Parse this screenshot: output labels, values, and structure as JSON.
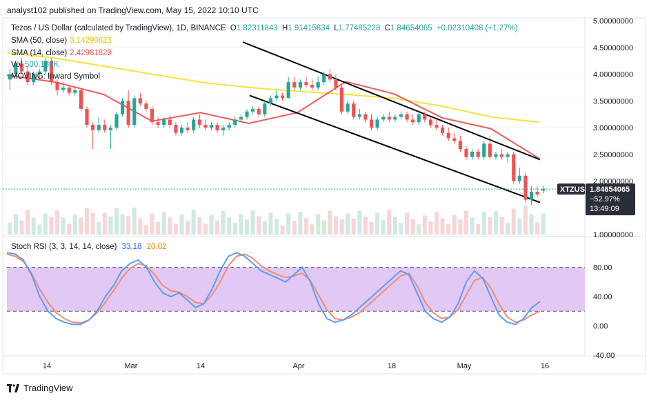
{
  "publisher": "analyst102 published on TradingView.com, May 15, 2022 10:10 UTC",
  "header": {
    "title": "Tezos / US Dollar (calculated by TradingView), 1D, BINANCE",
    "open_label": "O",
    "open": "1.82311843",
    "high_label": "H",
    "high": "1.91415834",
    "low_label": "L",
    "low": "1.77485228",
    "close_label": "C",
    "close": "1.84654065",
    "change": "+0.02310408 (+1.27%)"
  },
  "indicators": {
    "sma50_label": "SMA (50, close)",
    "sma50_value": "3.14290623",
    "sma14_label": "SMA (14, close)",
    "sma14_value": "2.42981829",
    "vol_label": "Vol",
    "vol_value": "500.186K",
    "moving_label": "MOVING: Inward Symbol"
  },
  "price_badge": {
    "symbol": "XTZUSD",
    "price": "1.84654065",
    "change": "−52.97%",
    "countdown": "13:49:09"
  },
  "rsi": {
    "label": "Stoch RSI (3, 3, 14, 14, close)",
    "k_value": "33.18",
    "d_value": "20.02"
  },
  "footer_brand": "TradingView",
  "colors": {
    "up": "#26a69a",
    "down": "#ef5350",
    "sma50": "#f5e33a",
    "sma14": "#ef5a5a",
    "channel": "#000000",
    "rsi_k": "#5b9cf6",
    "rsi_d": "#f28b72",
    "rsi_band": "#e1c8f5",
    "badge": "#2a2e39",
    "up_vol": "#cfe9e3",
    "down_vol": "#f6d6d6"
  },
  "chart_data": [
    {
      "type": "candlestick",
      "title": "Tezos / US Dollar (calculated by TradingView), 1D, BINANCE",
      "x_tick_labels": [
        "14",
        "Mar",
        "14",
        "Apr",
        "18",
        "May",
        "16"
      ],
      "y_tick_labels": [
        "5.00000000",
        "4.50000000",
        "4.00000000",
        "3.50000000",
        "3.00000000",
        "2.50000000",
        "2.00000000",
        "1.00000000"
      ],
      "ylim": [
        1.0,
        5.0
      ],
      "candles": [
        {
          "o": 3.9,
          "h": 4.1,
          "l": 3.7,
          "c": 4.0
        },
        {
          "o": 4.0,
          "h": 4.25,
          "l": 3.95,
          "c": 4.2
        },
        {
          "o": 4.2,
          "h": 4.3,
          "l": 4.0,
          "c": 4.05
        },
        {
          "o": 4.05,
          "h": 4.15,
          "l": 3.8,
          "c": 3.85
        },
        {
          "o": 3.85,
          "h": 4.05,
          "l": 3.8,
          "c": 4.0
        },
        {
          "o": 4.0,
          "h": 4.1,
          "l": 3.9,
          "c": 4.05
        },
        {
          "o": 4.05,
          "h": 4.3,
          "l": 4.0,
          "c": 4.25
        },
        {
          "o": 4.25,
          "h": 4.3,
          "l": 3.8,
          "c": 3.85
        },
        {
          "o": 3.85,
          "h": 3.9,
          "l": 3.6,
          "c": 3.7
        },
        {
          "o": 3.7,
          "h": 3.85,
          "l": 3.65,
          "c": 3.75
        },
        {
          "o": 3.75,
          "h": 3.8,
          "l": 3.6,
          "c": 3.65
        },
        {
          "o": 3.65,
          "h": 3.75,
          "l": 3.6,
          "c": 3.7
        },
        {
          "o": 3.7,
          "h": 3.72,
          "l": 3.3,
          "c": 3.35
        },
        {
          "o": 3.35,
          "h": 3.4,
          "l": 3.0,
          "c": 3.05
        },
        {
          "o": 3.05,
          "h": 3.1,
          "l": 2.6,
          "c": 2.95
        },
        {
          "o": 2.95,
          "h": 3.2,
          "l": 2.9,
          "c": 3.05
        },
        {
          "o": 3.05,
          "h": 3.15,
          "l": 2.9,
          "c": 2.95
        },
        {
          "o": 2.95,
          "h": 3.05,
          "l": 2.6,
          "c": 3.0
        },
        {
          "o": 3.0,
          "h": 3.3,
          "l": 2.95,
          "c": 3.25
        },
        {
          "o": 3.25,
          "h": 3.55,
          "l": 3.2,
          "c": 3.5
        },
        {
          "o": 3.5,
          "h": 3.7,
          "l": 3.0,
          "c": 3.05
        },
        {
          "o": 3.05,
          "h": 3.6,
          "l": 3.0,
          "c": 3.55
        },
        {
          "o": 3.55,
          "h": 3.65,
          "l": 3.4,
          "c": 3.45
        },
        {
          "o": 3.45,
          "h": 3.5,
          "l": 3.3,
          "c": 3.35
        },
        {
          "o": 3.35,
          "h": 3.4,
          "l": 3.05,
          "c": 3.1
        },
        {
          "o": 3.1,
          "h": 3.2,
          "l": 3.0,
          "c": 3.05
        },
        {
          "o": 3.05,
          "h": 3.2,
          "l": 3.0,
          "c": 3.15
        },
        {
          "o": 3.15,
          "h": 3.25,
          "l": 3.0,
          "c": 3.05
        },
        {
          "o": 3.05,
          "h": 3.1,
          "l": 2.85,
          "c": 2.9
        },
        {
          "o": 2.9,
          "h": 3.05,
          "l": 2.85,
          "c": 3.0
        },
        {
          "o": 3.0,
          "h": 3.1,
          "l": 2.9,
          "c": 2.95
        },
        {
          "o": 2.95,
          "h": 3.2,
          "l": 2.9,
          "c": 3.15
        },
        {
          "o": 3.15,
          "h": 3.25,
          "l": 3.0,
          "c": 3.05
        },
        {
          "o": 3.05,
          "h": 3.15,
          "l": 2.95,
          "c": 3.0
        },
        {
          "o": 3.0,
          "h": 3.1,
          "l": 2.95,
          "c": 3.05
        },
        {
          "o": 3.05,
          "h": 3.1,
          "l": 2.9,
          "c": 2.95
        },
        {
          "o": 2.95,
          "h": 3.05,
          "l": 2.85,
          "c": 3.0
        },
        {
          "o": 3.0,
          "h": 3.1,
          "l": 2.95,
          "c": 3.05
        },
        {
          "o": 3.05,
          "h": 3.2,
          "l": 3.0,
          "c": 3.15
        },
        {
          "o": 3.15,
          "h": 3.25,
          "l": 3.1,
          "c": 3.2
        },
        {
          "o": 3.2,
          "h": 3.35,
          "l": 3.15,
          "c": 3.3
        },
        {
          "o": 3.3,
          "h": 3.4,
          "l": 3.25,
          "c": 3.35
        },
        {
          "o": 3.35,
          "h": 3.4,
          "l": 3.2,
          "c": 3.25
        },
        {
          "o": 3.25,
          "h": 3.5,
          "l": 3.2,
          "c": 3.45
        },
        {
          "o": 3.45,
          "h": 3.6,
          "l": 3.4,
          "c": 3.55
        },
        {
          "o": 3.55,
          "h": 3.7,
          "l": 3.5,
          "c": 3.6
        },
        {
          "o": 3.6,
          "h": 3.65,
          "l": 3.5,
          "c": 3.55
        },
        {
          "o": 3.55,
          "h": 3.95,
          "l": 3.55,
          "c": 3.85
        },
        {
          "o": 3.85,
          "h": 3.95,
          "l": 3.7,
          "c": 3.75
        },
        {
          "o": 3.75,
          "h": 3.9,
          "l": 3.7,
          "c": 3.85
        },
        {
          "o": 3.85,
          "h": 3.95,
          "l": 3.75,
          "c": 3.8
        },
        {
          "o": 3.8,
          "h": 3.9,
          "l": 3.7,
          "c": 3.75
        },
        {
          "o": 3.75,
          "h": 3.95,
          "l": 3.7,
          "c": 3.85
        },
        {
          "o": 3.85,
          "h": 4.05,
          "l": 3.8,
          "c": 4.0
        },
        {
          "o": 4.0,
          "h": 4.1,
          "l": 3.85,
          "c": 3.9
        },
        {
          "o": 3.9,
          "h": 4.0,
          "l": 3.7,
          "c": 3.75
        },
        {
          "o": 3.75,
          "h": 3.8,
          "l": 3.25,
          "c": 3.3
        },
        {
          "o": 3.3,
          "h": 3.5,
          "l": 3.25,
          "c": 3.45
        },
        {
          "o": 3.45,
          "h": 3.5,
          "l": 3.15,
          "c": 3.2
        },
        {
          "o": 3.2,
          "h": 3.35,
          "l": 3.15,
          "c": 3.25
        },
        {
          "o": 3.25,
          "h": 3.3,
          "l": 3.1,
          "c": 3.15
        },
        {
          "o": 3.15,
          "h": 3.25,
          "l": 2.95,
          "c": 3.0
        },
        {
          "o": 3.0,
          "h": 3.2,
          "l": 2.95,
          "c": 3.15
        },
        {
          "o": 3.15,
          "h": 3.25,
          "l": 3.1,
          "c": 3.2
        },
        {
          "o": 3.2,
          "h": 3.3,
          "l": 3.1,
          "c": 3.15
        },
        {
          "o": 3.15,
          "h": 3.25,
          "l": 3.1,
          "c": 3.2
        },
        {
          "o": 3.2,
          "h": 3.3,
          "l": 3.15,
          "c": 3.25
        },
        {
          "o": 3.25,
          "h": 3.3,
          "l": 3.1,
          "c": 3.15
        },
        {
          "o": 3.15,
          "h": 3.25,
          "l": 3.05,
          "c": 3.1
        },
        {
          "o": 3.1,
          "h": 3.3,
          "l": 3.05,
          "c": 3.25
        },
        {
          "o": 3.25,
          "h": 3.3,
          "l": 3.1,
          "c": 3.15
        },
        {
          "o": 3.15,
          "h": 3.2,
          "l": 3.0,
          "c": 3.05
        },
        {
          "o": 3.05,
          "h": 3.15,
          "l": 2.95,
          "c": 3.0
        },
        {
          "o": 3.0,
          "h": 3.05,
          "l": 2.85,
          "c": 2.9
        },
        {
          "o": 2.9,
          "h": 3.0,
          "l": 2.75,
          "c": 2.8
        },
        {
          "o": 2.8,
          "h": 2.9,
          "l": 2.7,
          "c": 2.75
        },
        {
          "o": 2.75,
          "h": 2.85,
          "l": 2.55,
          "c": 2.6
        },
        {
          "o": 2.6,
          "h": 2.65,
          "l": 2.4,
          "c": 2.45
        },
        {
          "o": 2.45,
          "h": 2.6,
          "l": 2.4,
          "c": 2.55
        },
        {
          "o": 2.55,
          "h": 2.6,
          "l": 2.4,
          "c": 2.45
        },
        {
          "o": 2.45,
          "h": 2.75,
          "l": 2.4,
          "c": 2.7
        },
        {
          "o": 2.7,
          "h": 2.85,
          "l": 2.4,
          "c": 2.45
        },
        {
          "o": 2.45,
          "h": 2.55,
          "l": 2.4,
          "c": 2.5
        },
        {
          "o": 2.5,
          "h": 2.6,
          "l": 2.4,
          "c": 2.45
        },
        {
          "o": 2.45,
          "h": 2.55,
          "l": 2.35,
          "c": 2.5
        },
        {
          "o": 2.5,
          "h": 2.55,
          "l": 1.95,
          "c": 2.0
        },
        {
          "o": 2.0,
          "h": 2.25,
          "l": 1.95,
          "c": 2.1
        },
        {
          "o": 2.1,
          "h": 2.15,
          "l": 1.6,
          "c": 1.65
        },
        {
          "o": 1.65,
          "h": 1.9,
          "l": 1.55,
          "c": 1.8
        },
        {
          "o": 1.8,
          "h": 1.9,
          "l": 1.7,
          "c": 1.75
        },
        {
          "o": 1.82,
          "h": 1.91,
          "l": 1.77,
          "c": 1.85
        }
      ],
      "sma50": [
        4.4,
        4.3,
        4.15,
        4.0,
        3.85,
        3.75,
        3.68,
        3.62,
        3.55,
        3.4,
        3.2,
        3.1
      ],
      "sma14": [
        3.98,
        3.85,
        3.62,
        3.12,
        3.28,
        3.08,
        3.28,
        3.86,
        3.63,
        3.18,
        2.98,
        2.42
      ],
      "channel_upper": [
        [
          4.6,
          2.4
        ]
      ],
      "channel_lower": [
        [
          3.6,
          1.6
        ]
      ]
    },
    {
      "type": "line",
      "title": "Stoch RSI (3, 3, 14, 14, close)",
      "y_tick_labels": [
        "80.00",
        "40.00",
        "0.00",
        "-40.00"
      ],
      "ylim": [
        -40,
        120
      ],
      "bands": [
        20,
        80
      ],
      "series": [
        {
          "name": "K",
          "values": [
            100,
            98,
            90,
            70,
            40,
            20,
            10,
            5,
            2,
            2,
            8,
            20,
            40,
            55,
            75,
            85,
            90,
            80,
            60,
            45,
            40,
            45,
            35,
            25,
            30,
            50,
            75,
            95,
            100,
            95,
            85,
            75,
            70,
            65,
            60,
            70,
            80,
            60,
            30,
            10,
            5,
            8,
            15,
            25,
            35,
            45,
            55,
            65,
            75,
            70,
            45,
            20,
            10,
            5,
            12,
            30,
            60,
            75,
            65,
            40,
            15,
            5,
            2,
            10,
            25,
            33
          ]
        },
        {
          "name": "D",
          "values": [
            98,
            95,
            88,
            72,
            50,
            32,
            18,
            10,
            5,
            4,
            8,
            18,
            32,
            48,
            65,
            78,
            85,
            82,
            70,
            55,
            48,
            46,
            40,
            32,
            30,
            42,
            60,
            82,
            95,
            98,
            92,
            82,
            75,
            70,
            66,
            68,
            72,
            62,
            42,
            22,
            10,
            8,
            12,
            18,
            28,
            38,
            48,
            58,
            68,
            72,
            55,
            32,
            18,
            10,
            12,
            22,
            42,
            62,
            66,
            52,
            30,
            12,
            5,
            8,
            15,
            20
          ]
        }
      ]
    }
  ]
}
